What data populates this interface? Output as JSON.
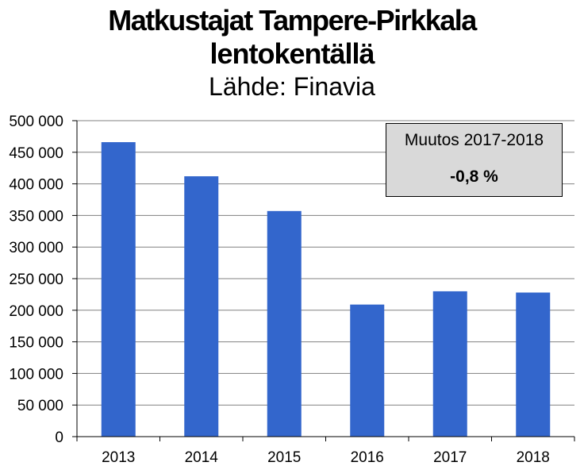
{
  "chart_data": {
    "type": "bar",
    "title": "Matkustajat Tampere-Pirkkala lentokentällä",
    "title_lines": [
      "Matkustajat Tampere-Pirkkala",
      "lentokentällä"
    ],
    "subtitle": "Lähde: Finavia",
    "categories": [
      "2013",
      "2014",
      "2015",
      "2016",
      "2017",
      "2018"
    ],
    "values": [
      466000,
      412000,
      357000,
      209000,
      230000,
      228000
    ],
    "ylim": [
      0,
      500000
    ],
    "yticks": [
      "0",
      "50 000",
      "100 000",
      "150 000",
      "200 000",
      "250 000",
      "300 000",
      "350 000",
      "400 000",
      "450 000",
      "500 000"
    ],
    "xlabel": "",
    "ylabel": "",
    "grid": true,
    "bar_color": "#3366cc",
    "annotation": {
      "label": "Muutos 2017-2018",
      "value": "-0,8 %"
    }
  }
}
